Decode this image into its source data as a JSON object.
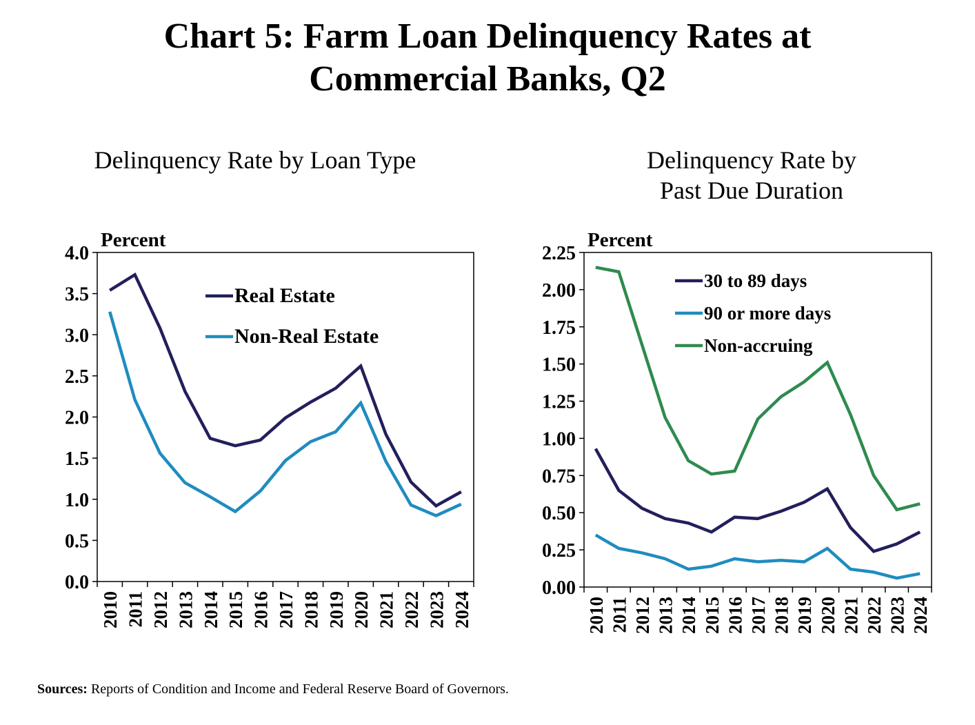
{
  "title": {
    "line1": "Chart 5: Farm Loan Delinquency Rates at",
    "line2": "Commercial Banks, Q2"
  },
  "sources": {
    "label": "Sources:",
    "text": "Reports of Condition and Income and Federal Reserve Board of Governors."
  },
  "chart_data": [
    {
      "type": "line",
      "title": "Delinquency Rate by Loan Type",
      "ylabel": "Percent",
      "xlabel": "",
      "categories": [
        "2010",
        "2011",
        "2012",
        "2013",
        "2014",
        "2015",
        "2016",
        "2017",
        "2018",
        "2019",
        "2020",
        "2021",
        "2022",
        "2023",
        "2024"
      ],
      "ylim": [
        0,
        4.0
      ],
      "yticks": [
        0.0,
        0.5,
        1.0,
        1.5,
        2.0,
        2.5,
        3.0,
        3.5,
        4.0
      ],
      "ytick_labels": [
        "0.0",
        "0.5",
        "1.0",
        "1.5",
        "2.0",
        "2.5",
        "3.0",
        "3.5",
        "4.0"
      ],
      "grid": false,
      "legend_position": "top-center",
      "series": [
        {
          "name": "Real Estate",
          "color": "#231f5c",
          "values": [
            3.54,
            3.73,
            3.08,
            2.31,
            1.74,
            1.65,
            1.72,
            1.99,
            2.18,
            2.35,
            2.62,
            1.79,
            1.21,
            0.92,
            1.09
          ]
        },
        {
          "name": "Non-Real Estate",
          "color": "#1f8cbf",
          "values": [
            3.28,
            2.21,
            1.56,
            1.2,
            1.03,
            0.85,
            1.1,
            1.47,
            1.7,
            1.82,
            2.17,
            1.46,
            0.93,
            0.8,
            0.94
          ]
        }
      ]
    },
    {
      "type": "line",
      "title": "Delinquency Rate by Past Due Duration",
      "title_lines": [
        "Delinquency Rate by",
        "Past Due Duration"
      ],
      "ylabel": "Percent",
      "xlabel": "",
      "categories": [
        "2010",
        "2011",
        "2012",
        "2013",
        "2014",
        "2015",
        "2016",
        "2017",
        "2018",
        "2019",
        "2020",
        "2021",
        "2022",
        "2023",
        "2024"
      ],
      "ylim": [
        0,
        2.25
      ],
      "yticks": [
        0.0,
        0.25,
        0.5,
        0.75,
        1.0,
        1.25,
        1.5,
        1.75,
        2.0,
        2.25
      ],
      "ytick_labels": [
        "0.00",
        "0.25",
        "0.50",
        "0.75",
        "1.00",
        "1.25",
        "1.50",
        "1.75",
        "2.00",
        "2.25"
      ],
      "grid": false,
      "legend_position": "top-center",
      "series": [
        {
          "name": "30 to 89 days",
          "color": "#231f5c",
          "values": [
            0.93,
            0.65,
            0.53,
            0.46,
            0.43,
            0.37,
            0.47,
            0.46,
            0.51,
            0.57,
            0.66,
            0.4,
            0.24,
            0.29,
            0.37
          ]
        },
        {
          "name": "90 or more days",
          "color": "#1f8cbf",
          "values": [
            0.35,
            0.26,
            0.23,
            0.19,
            0.12,
            0.14,
            0.19,
            0.17,
            0.18,
            0.17,
            0.26,
            0.12,
            0.1,
            0.06,
            0.09
          ]
        },
        {
          "name": "Non-accruing",
          "color": "#2e8b4e",
          "values": [
            2.15,
            2.12,
            1.63,
            1.14,
            0.85,
            0.76,
            0.78,
            1.13,
            1.28,
            1.38,
            1.51,
            1.16,
            0.75,
            0.52,
            0.56
          ]
        }
      ]
    }
  ]
}
